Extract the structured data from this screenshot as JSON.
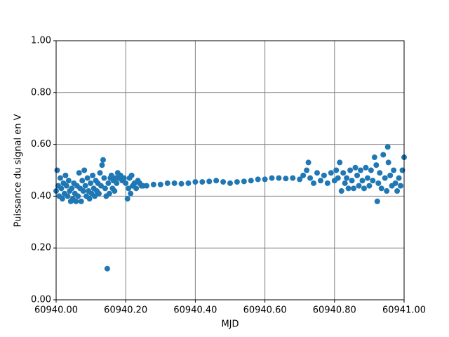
{
  "chart_data": {
    "type": "scatter",
    "x_label": "MJD",
    "y_label": "Puissance du signal en V",
    "xlim": [
      60940.0,
      60941.0
    ],
    "ylim": [
      0.0,
      1.0
    ],
    "xticks": [
      {
        "value": 60940.0,
        "label": "60940.00"
      },
      {
        "value": 60940.2,
        "label": "60940.20"
      },
      {
        "value": 60940.4,
        "label": "60940.40"
      },
      {
        "value": 60940.6,
        "label": "60940.60"
      },
      {
        "value": 60940.8,
        "label": "60940.80"
      },
      {
        "value": 60941.0,
        "label": "60941.00"
      }
    ],
    "yticks": [
      {
        "value": 0.0,
        "label": "0.00"
      },
      {
        "value": 0.2,
        "label": "0.20"
      },
      {
        "value": 0.4,
        "label": "0.40"
      },
      {
        "value": 0.6,
        "label": "0.60"
      },
      {
        "value": 0.8,
        "label": "0.80"
      },
      {
        "value": 1.0,
        "label": "1.00"
      }
    ],
    "grid": true,
    "grid_color": "#808080",
    "color": "#1f77b4",
    "x": [
      60940.0,
      60940.003,
      60940.006,
      60940.009,
      60940.012,
      60940.015,
      60940.018,
      60940.021,
      60940.024,
      60940.027,
      60940.03,
      60940.033,
      60940.036,
      60940.039,
      60940.042,
      60940.045,
      60940.048,
      60940.051,
      60940.054,
      60940.057,
      60940.06,
      60940.063,
      60940.066,
      60940.069,
      60940.072,
      60940.075,
      60940.078,
      60940.081,
      60940.084,
      60940.087,
      60940.09,
      60940.093,
      60940.096,
      60940.099,
      60940.102,
      60940.105,
      60940.108,
      60940.111,
      60940.114,
      60940.117,
      60940.12,
      60940.123,
      60940.126,
      60940.129,
      60940.132,
      60940.135,
      60940.138,
      60940.141,
      60940.144,
      60940.147,
      60940.15,
      60940.153,
      60940.156,
      60940.159,
      60940.162,
      60940.165,
      60940.168,
      60940.171,
      60940.174,
      60940.177,
      60940.18,
      60940.185,
      60940.19,
      60940.195,
      60940.2,
      60940.205,
      60940.208,
      60940.211,
      60940.214,
      60940.217,
      60940.22,
      60940.225,
      60940.23,
      60940.235,
      60940.24,
      60940.245,
      60940.25,
      60940.26,
      60940.28,
      60940.3,
      60940.32,
      60940.34,
      60940.36,
      60940.38,
      60940.4,
      60940.42,
      60940.44,
      60940.46,
      60940.48,
      60940.5,
      60940.52,
      60940.54,
      60940.56,
      60940.58,
      60940.6,
      60940.62,
      60940.64,
      60940.66,
      60940.68,
      60940.7,
      60940.71,
      60940.72,
      60940.725,
      60940.73,
      60940.74,
      60940.75,
      60940.76,
      60940.77,
      60940.78,
      60940.79,
      60940.8,
      60940.805,
      60940.81,
      60940.815,
      60940.82,
      60940.825,
      60940.83,
      60940.835,
      60940.84,
      60940.845,
      60940.85,
      60940.855,
      60940.86,
      60940.865,
      60940.87,
      60940.875,
      60940.88,
      60940.885,
      60940.89,
      60940.895,
      60940.9,
      60940.905,
      60940.91,
      60940.915,
      60940.92,
      60940.923,
      60940.926,
      60940.93,
      60940.935,
      60940.94,
      60940.945,
      60940.95,
      60940.953,
      60940.955,
      60940.96,
      60940.965,
      60940.97,
      60940.975,
      60940.98,
      60940.985,
      60940.99,
      60940.995,
      60941.0
    ],
    "values": [
      0.42,
      0.5,
      0.44,
      0.4,
      0.47,
      0.43,
      0.39,
      0.45,
      0.41,
      0.48,
      0.44,
      0.4,
      0.46,
      0.42,
      0.38,
      0.43,
      0.39,
      0.45,
      0.41,
      0.38,
      0.44,
      0.4,
      0.49,
      0.43,
      0.38,
      0.46,
      0.42,
      0.5,
      0.44,
      0.4,
      0.47,
      0.42,
      0.39,
      0.45,
      0.41,
      0.48,
      0.43,
      0.4,
      0.46,
      0.42,
      0.45,
      0.41,
      0.49,
      0.44,
      0.52,
      0.54,
      0.47,
      0.43,
      0.4,
      0.12,
      0.45,
      0.41,
      0.47,
      0.48,
      0.43,
      0.46,
      0.42,
      0.47,
      0.45,
      0.49,
      0.47,
      0.48,
      0.46,
      0.47,
      0.45,
      0.39,
      0.43,
      0.47,
      0.41,
      0.48,
      0.44,
      0.45,
      0.43,
      0.46,
      0.45,
      0.44,
      0.44,
      0.44,
      0.445,
      0.445,
      0.45,
      0.45,
      0.448,
      0.45,
      0.455,
      0.455,
      0.457,
      0.46,
      0.455,
      0.45,
      0.455,
      0.457,
      0.46,
      0.465,
      0.465,
      0.47,
      0.47,
      0.468,
      0.47,
      0.465,
      0.48,
      0.5,
      0.53,
      0.47,
      0.45,
      0.49,
      0.46,
      0.48,
      0.45,
      0.49,
      0.46,
      0.5,
      0.47,
      0.53,
      0.42,
      0.49,
      0.45,
      0.47,
      0.43,
      0.5,
      0.46,
      0.43,
      0.51,
      0.48,
      0.44,
      0.5,
      0.46,
      0.43,
      0.51,
      0.47,
      0.44,
      0.5,
      0.46,
      0.55,
      0.52,
      0.38,
      0.45,
      0.49,
      0.43,
      0.56,
      0.47,
      0.42,
      0.59,
      0.53,
      0.48,
      0.44,
      0.5,
      0.45,
      0.42,
      0.47,
      0.44,
      0.5,
      0.55
    ]
  }
}
